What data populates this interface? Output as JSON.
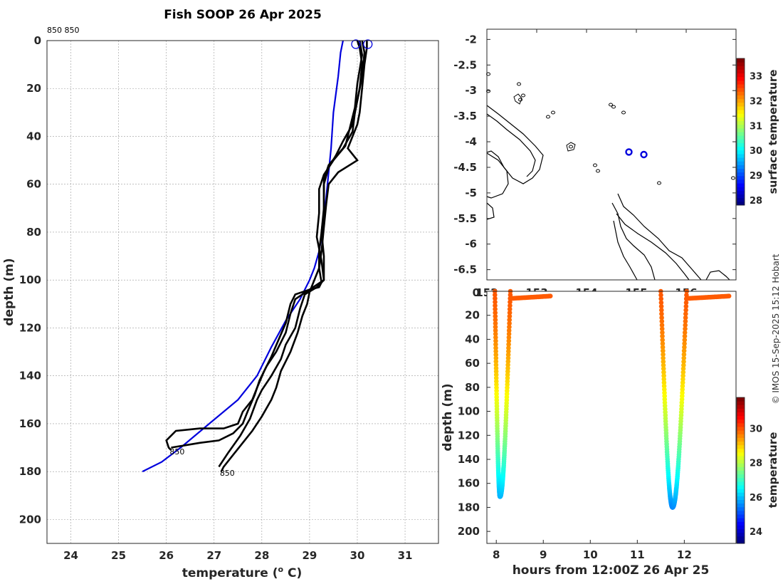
{
  "title": "Fish SOOP 26 Apr 2025",
  "probe_ids": "850 850",
  "copyright": "© IMOS 15-Sep-2025 15:12 Hobart",
  "chart_data": [
    {
      "type": "line",
      "name": "temperature-depth-profiles",
      "xlabel": "temperature (",
      "xlabel_sup": "o",
      "xlabel_tail": " C)",
      "ylabel": "depth (m)",
      "xlim": [
        23.5,
        31.7
      ],
      "ylim": [
        210,
        0
      ],
      "xticks": [
        24,
        25,
        26,
        27,
        28,
        29,
        30,
        31
      ],
      "yticks": [
        0,
        20,
        40,
        60,
        80,
        100,
        120,
        140,
        160,
        180,
        200
      ],
      "series": [
        {
          "name": "climatology",
          "color": "#0000dd",
          "points": [
            [
              29.7,
              0
            ],
            [
              29.65,
              5
            ],
            [
              29.6,
              15
            ],
            [
              29.5,
              30
            ],
            [
              29.45,
              45
            ],
            [
              29.4,
              55
            ],
            [
              29.35,
              65
            ],
            [
              29.3,
              75
            ],
            [
              29.25,
              82
            ],
            [
              29.2,
              88
            ],
            [
              29.1,
              95
            ],
            [
              29.0,
              100
            ],
            [
              28.8,
              108
            ],
            [
              28.5,
              117
            ],
            [
              28.2,
              128
            ],
            [
              27.9,
              140
            ],
            [
              27.5,
              150
            ],
            [
              26.9,
              160
            ],
            [
              26.3,
              170
            ],
            [
              25.9,
              176
            ],
            [
              25.5,
              180
            ]
          ]
        },
        {
          "name": "profile-1",
          "color": "#000000",
          "label": "850",
          "points": [
            [
              30.0,
              0
            ],
            [
              30.05,
              3
            ],
            [
              30.1,
              10
            ],
            [
              30.05,
              20
            ],
            [
              29.95,
              30
            ],
            [
              29.9,
              38
            ],
            [
              29.7,
              45
            ],
            [
              29.4,
              52
            ],
            [
              29.3,
              58
            ],
            [
              29.3,
              65
            ],
            [
              29.3,
              72
            ],
            [
              29.25,
              80
            ],
            [
              29.2,
              88
            ],
            [
              29.2,
              95
            ],
            [
              29.25,
              101
            ],
            [
              29.2,
              103
            ],
            [
              29.0,
              104
            ],
            [
              28.7,
              106
            ],
            [
              28.6,
              110
            ],
            [
              28.5,
              118
            ],
            [
              28.35,
              125
            ],
            [
              28.2,
              132
            ],
            [
              28.05,
              138
            ],
            [
              27.9,
              145
            ],
            [
              27.8,
              150
            ],
            [
              27.6,
              155
            ],
            [
              27.5,
              160
            ],
            [
              27.2,
              162
            ],
            [
              26.7,
              162
            ],
            [
              26.2,
              163
            ],
            [
              26.0,
              167
            ],
            [
              26.05,
              170
            ],
            [
              26.1,
              171
            ]
          ]
        },
        {
          "name": "profile-2",
          "color": "#000000",
          "label": "850",
          "points": [
            [
              30.2,
              0
            ],
            [
              30.2,
              3
            ],
            [
              30.15,
              10
            ],
            [
              30.1,
              20
            ],
            [
              30.05,
              30
            ],
            [
              30.0,
              35
            ],
            [
              29.9,
              40
            ],
            [
              29.8,
              45
            ],
            [
              30.0,
              50
            ],
            [
              29.6,
              55
            ],
            [
              29.4,
              60
            ],
            [
              29.35,
              68
            ],
            [
              29.3,
              78
            ],
            [
              29.25,
              88
            ],
            [
              29.2,
              95
            ],
            [
              29.1,
              100
            ],
            [
              29.0,
              105
            ],
            [
              28.95,
              110
            ],
            [
              28.85,
              115
            ],
            [
              28.75,
              122
            ],
            [
              28.6,
              130
            ],
            [
              28.4,
              138
            ],
            [
              28.3,
              145
            ],
            [
              28.2,
              150
            ],
            [
              28.0,
              157
            ],
            [
              27.8,
              163
            ],
            [
              27.6,
              168
            ],
            [
              27.4,
              173
            ],
            [
              27.2,
              178
            ],
            [
              27.15,
              180
            ]
          ]
        },
        {
          "name": "profile-3",
          "color": "#000000",
          "points": [
            [
              30.1,
              0
            ],
            [
              30.15,
              5
            ],
            [
              30.1,
              15
            ],
            [
              30.0,
              25
            ],
            [
              29.9,
              35
            ],
            [
              29.7,
              42
            ],
            [
              29.55,
              48
            ],
            [
              29.4,
              53
            ],
            [
              29.3,
              60
            ],
            [
              29.3,
              70
            ],
            [
              29.25,
              80
            ],
            [
              29.3,
              90
            ],
            [
              29.3,
              100
            ],
            [
              29.15,
              103
            ],
            [
              28.9,
              106
            ],
            [
              28.8,
              112
            ],
            [
              28.7,
              120
            ],
            [
              28.5,
              127
            ],
            [
              28.4,
              133
            ],
            [
              28.2,
              140
            ],
            [
              28.0,
              146
            ],
            [
              27.9,
              150
            ],
            [
              27.75,
              158
            ],
            [
              27.55,
              165
            ],
            [
              27.3,
              172
            ],
            [
              27.1,
              178
            ]
          ]
        },
        {
          "name": "profile-4",
          "color": "#000000",
          "points": [
            [
              30.05,
              0
            ],
            [
              30.1,
              6
            ],
            [
              30.0,
              18
            ],
            [
              29.95,
              28
            ],
            [
              29.85,
              36
            ],
            [
              29.75,
              44
            ],
            [
              29.5,
              50
            ],
            [
              29.3,
              56
            ],
            [
              29.2,
              62
            ],
            [
              29.2,
              72
            ],
            [
              29.15,
              82
            ],
            [
              29.25,
              92
            ],
            [
              29.3,
              100
            ],
            [
              29.0,
              104
            ],
            [
              28.7,
              108
            ],
            [
              28.6,
              114
            ],
            [
              28.5,
              122
            ],
            [
              28.3,
              130
            ],
            [
              28.1,
              136
            ],
            [
              27.95,
              142
            ],
            [
              27.85,
              148
            ],
            [
              27.7,
              155
            ],
            [
              27.6,
              160
            ],
            [
              27.4,
              164
            ],
            [
              27.1,
              167
            ],
            [
              26.7,
              168
            ],
            [
              26.4,
              169
            ],
            [
              26.1,
              170
            ]
          ]
        }
      ],
      "markers": [
        [
          29.97,
          1.5
        ],
        [
          30.22,
          1.5
        ]
      ]
    },
    {
      "type": "scatter",
      "name": "location-map",
      "xlim": [
        152.0,
        157.0
      ],
      "ylim": [
        -6.7,
        -1.8
      ],
      "xticks": [
        152,
        153,
        154,
        155,
        156
      ],
      "xtick_labels": [
        "152",
        "153",
        "154",
        "155",
        "156"
      ],
      "yticks": [
        -2,
        -2.5,
        -3,
        -3.5,
        -4,
        -4.5,
        -5,
        -5.5,
        -6,
        -6.5
      ],
      "points": [
        [
          154.85,
          -4.2
        ],
        [
          155.15,
          -4.25
        ]
      ],
      "colorbar": {
        "label": "surface temperature",
        "ticks": [
          28,
          29,
          30,
          31,
          32,
          33
        ],
        "range": [
          27.8,
          33.7
        ]
      }
    },
    {
      "type": "scatter",
      "name": "depth-time-section",
      "xlabel": "hours from 12:00Z 26 Apr 25",
      "ylabel": "depth (m)",
      "xlim": [
        7.8,
        13.1
      ],
      "ylim": [
        210,
        0
      ],
      "xticks": [
        8,
        9,
        10,
        11,
        12
      ],
      "yticks": [
        0,
        20,
        40,
        60,
        80,
        100,
        120,
        140,
        160,
        180,
        200
      ],
      "dives": [
        {
          "start": 7.97,
          "bottom_time": 8.08,
          "end": 8.3,
          "max_depth": 171,
          "tail_end": 9.15,
          "tail_depth": 6
        },
        {
          "start": 11.5,
          "bottom_time": 11.75,
          "end": 12.05,
          "max_depth": 180,
          "tail_end": 12.95,
          "tail_depth": 6
        }
      ],
      "colorbar": {
        "label": "temperature",
        "ticks": [
          24,
          26,
          28,
          30
        ],
        "range": [
          23.3,
          31.8
        ]
      }
    }
  ]
}
